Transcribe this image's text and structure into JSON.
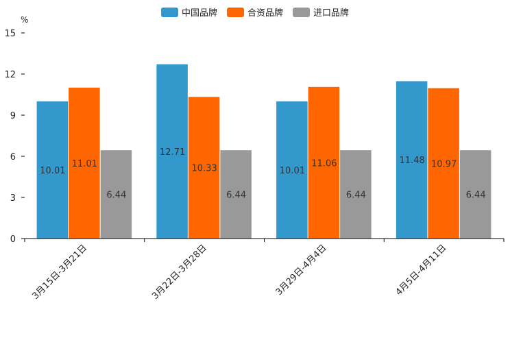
{
  "chart_data": {
    "type": "bar",
    "unit_label": "%",
    "categories": [
      "3月15日-3月21日",
      "3月22日-3月28日",
      "3月29日-4月4日",
      "4月5日-4月11日"
    ],
    "series": [
      {
        "name": "中国品牌",
        "color": "#3399cc",
        "values": [
          10.01,
          12.71,
          10.01,
          11.48
        ],
        "labels": [
          "10.01",
          "12.71",
          "10.01",
          "11.48"
        ]
      },
      {
        "name": "合资品牌",
        "color": "#ff6600",
        "values": [
          11.01,
          10.33,
          11.06,
          10.97
        ],
        "labels": [
          "11.01",
          "10.33",
          "11.06",
          "10.97"
        ]
      },
      {
        "name": "进口品牌",
        "color": "#999999",
        "values": [
          6.44,
          6.44,
          6.44,
          6.44
        ],
        "labels": [
          "6.44",
          "6.44",
          "6.44",
          "6.44"
        ]
      }
    ],
    "ylim": [
      0,
      15
    ],
    "yticks": [
      0,
      3,
      6,
      9,
      12,
      15
    ],
    "ytick_labels": [
      "0",
      "3",
      "6",
      "9",
      "12",
      "15"
    ],
    "legend_position": "top-center",
    "grid": false
  }
}
